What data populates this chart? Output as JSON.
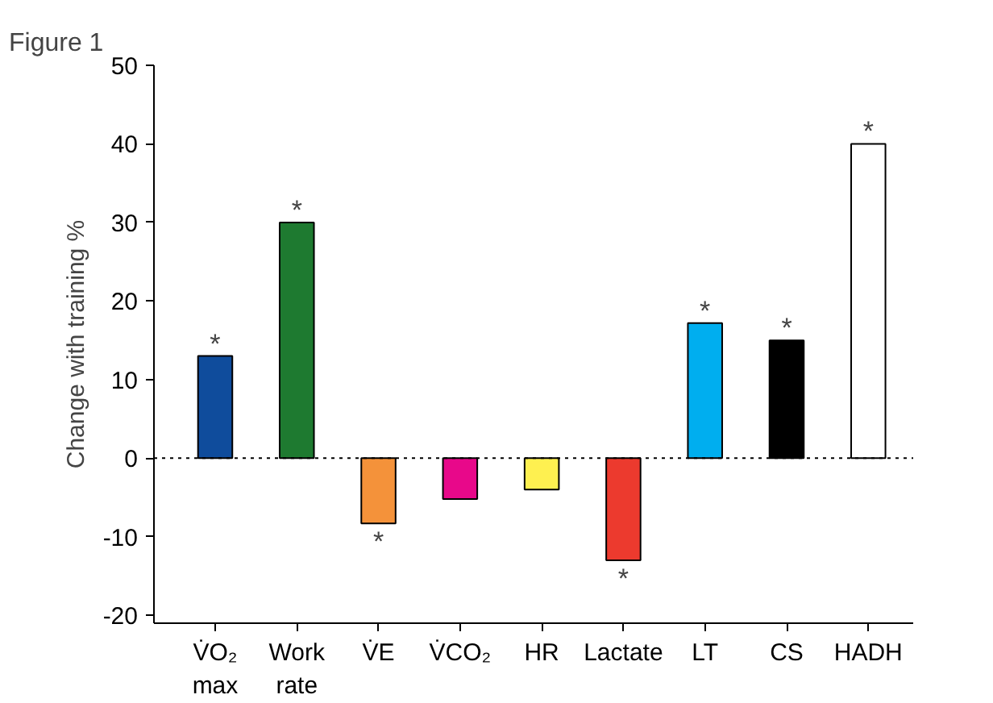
{
  "chart_data": {
    "type": "bar",
    "title": "Figure 1",
    "ylabel": "Change with training %",
    "categories": [
      "V̇O₂\nmax",
      "Work\nrate",
      "V̇E",
      "V̇CO₂",
      "HR",
      "Lactate",
      "LT",
      "CS",
      "HADH"
    ],
    "values": [
      13,
      30,
      -8.3,
      -5.2,
      -4,
      -13,
      17.2,
      15,
      40
    ],
    "colors": [
      "#0f4c9c",
      "#1e7a30",
      "#f4923a",
      "#e8088a",
      "#fef050",
      "#ec3a2e",
      "#00aeef",
      "#000000",
      "#ffffff"
    ],
    "ylim": [
      -21,
      50
    ],
    "yticks": [
      -20,
      -10,
      0,
      10,
      20,
      30,
      40,
      50
    ],
    "grid": false,
    "ref_lines": [
      {
        "axis": "y",
        "value": 0,
        "line_style": "dotted",
        "color": "#000000"
      }
    ],
    "annotations": [
      {
        "text": "*",
        "x": "V̇O₂\nmax",
        "y": 13
      },
      {
        "text": "*",
        "x": "Work\nrate",
        "y": 30
      },
      {
        "text": "*",
        "x": "V̇E",
        "y": -8.3
      },
      {
        "text": "*",
        "x": "Lactate",
        "y": -13
      },
      {
        "text": "*",
        "x": "LT",
        "y": 17.2
      },
      {
        "text": "*",
        "x": "CS",
        "y": 15
      },
      {
        "text": "*",
        "x": "HADH",
        "y": 40
      }
    ]
  }
}
